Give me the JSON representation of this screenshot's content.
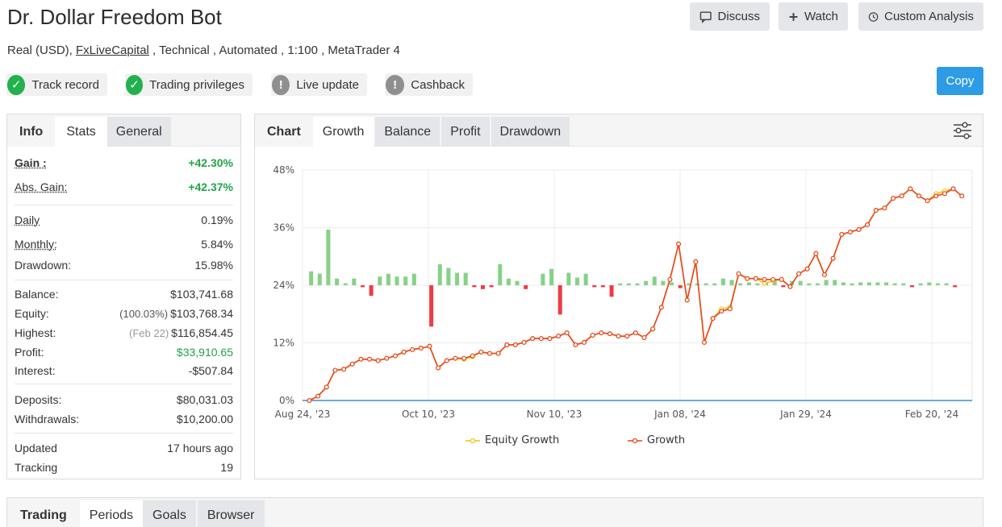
{
  "title": "Dr. Dollar Freedom Bot",
  "subtitle": {
    "part1": "Real (USD), ",
    "broker": "FxLiveCapital",
    "part2": " , Technical , Automated , 1:100 , MetaTrader 4"
  },
  "actions": {
    "discuss": "Discuss",
    "watch": "Watch",
    "custom_analysis": "Custom Analysis",
    "copy": "Copy"
  },
  "badges": [
    {
      "label": "Track record",
      "status": "ok"
    },
    {
      "label": "Trading privileges",
      "status": "ok"
    },
    {
      "label": "Live update",
      "status": "na"
    },
    {
      "label": "Cashback",
      "status": "na"
    }
  ],
  "stats_tabs": {
    "head": "Info",
    "tabs": [
      "Stats",
      "General"
    ]
  },
  "stats": {
    "gain": {
      "label": "Gain :",
      "value": "+42.30%"
    },
    "abs_gain": {
      "label": "Abs. Gain:",
      "value": "+42.37%"
    },
    "daily": {
      "label": "Daily",
      "value": "0.19%"
    },
    "monthly": {
      "label": "Monthly:",
      "value": "5.84%"
    },
    "drawdown": {
      "label": "Drawdown:",
      "value": "15.98%"
    },
    "balance": {
      "label": "Balance:",
      "value": "$103,741.68"
    },
    "equity": {
      "label": "Equity:",
      "note": "(100.03%)",
      "value": "$103,768.34"
    },
    "highest": {
      "label": "Highest:",
      "note": "(Feb 22)",
      "value": "$116,854.45"
    },
    "profit": {
      "label": "Profit:",
      "value": "$33,910.65"
    },
    "interest": {
      "label": "Interest:",
      "value": "-$507.84"
    },
    "deposits": {
      "label": "Deposits:",
      "value": "$80,031.03"
    },
    "withdrawals": {
      "label": "Withdrawals:",
      "value": "$10,200.00"
    },
    "updated": {
      "label": "Updated",
      "value": "17 hours ago"
    },
    "tracking": {
      "label": "Tracking",
      "value": "19"
    }
  },
  "chart_tabs": {
    "head": "Chart",
    "tabs": [
      "Growth",
      "Balance",
      "Profit",
      "Drawdown"
    ]
  },
  "bottom_tabs": {
    "head": "Trading",
    "tabs": [
      "Periods",
      "Goals",
      "Browser"
    ]
  },
  "colors": {
    "growth": "#e8431c",
    "equity": "#f4c20d",
    "bar_pos": "#86d186",
    "bar_neg": "#ef3b45",
    "accent": "#2e9be6"
  },
  "chart_data": {
    "type": "line",
    "x_tick_labels": [
      "Aug 24, '23",
      "Oct 10, '23",
      "Nov 10, '23",
      "Jan 08, '24",
      "Jan 29, '24",
      "Feb 20, '24"
    ],
    "y_tick_labels": [
      "0%",
      "12%",
      "24%",
      "36%",
      "48%"
    ],
    "ylim": [
      0,
      48
    ],
    "grid": true,
    "legend_position": "bottom",
    "series": [
      {
        "name": "Equity Growth",
        "points": [
          [
            0.8,
            0
          ],
          [
            1.8,
            0.9
          ],
          [
            2.8,
            2.8
          ],
          [
            3.8,
            6.3
          ],
          [
            4.8,
            6.5
          ],
          [
            5.8,
            7.6
          ],
          [
            6.8,
            8.6
          ],
          [
            7.8,
            8.6
          ],
          [
            8.8,
            8.3
          ],
          [
            9.8,
            8.8
          ],
          [
            10.8,
            9.3
          ],
          [
            11.8,
            10.1
          ],
          [
            12.8,
            10.6
          ],
          [
            13.8,
            10.9
          ],
          [
            14.8,
            11.3
          ],
          [
            15.8,
            6.8
          ],
          [
            16.8,
            8.3
          ],
          [
            17.8,
            8.8
          ],
          [
            18.8,
            8.6
          ],
          [
            19.8,
            9.1
          ],
          [
            20.8,
            10.1
          ],
          [
            21.8,
            9.8
          ],
          [
            22.8,
            9.8
          ],
          [
            23.8,
            11.6
          ],
          [
            24.8,
            11.6
          ],
          [
            25.8,
            12.1
          ],
          [
            26.8,
            12.9
          ],
          [
            27.8,
            12.9
          ],
          [
            28.8,
            12.9
          ],
          [
            29.8,
            13.4
          ],
          [
            30.8,
            14.1
          ],
          [
            31.8,
            11.6
          ],
          [
            32.8,
            12.1
          ],
          [
            33.8,
            13.6
          ],
          [
            34.8,
            14.1
          ],
          [
            35.8,
            13.9
          ],
          [
            36.8,
            13.4
          ],
          [
            37.8,
            13.4
          ],
          [
            38.8,
            14.1
          ],
          [
            39.8,
            13.1
          ],
          [
            40.8,
            14.9
          ],
          [
            41.8,
            19.4
          ],
          [
            42.8,
            25.2
          ],
          [
            43.8,
            32.6
          ],
          [
            44.8,
            20.9
          ],
          [
            45.8,
            28.9
          ],
          [
            46.8,
            12.1
          ],
          [
            47.8,
            17.1
          ],
          [
            48.8,
            19.1
          ],
          [
            49.8,
            19.4
          ],
          [
            50.8,
            26.4
          ],
          [
            51.8,
            25.4
          ],
          [
            52.8,
            25.4
          ],
          [
            53.8,
            24.4
          ],
          [
            54.8,
            24.9
          ],
          [
            55.8,
            25.2
          ],
          [
            56.8,
            23.7
          ],
          [
            57.8,
            26.4
          ],
          [
            58.8,
            27.4
          ],
          [
            59.8,
            30.6
          ],
          [
            60.8,
            26.2
          ],
          [
            61.8,
            29.6
          ],
          [
            62.8,
            34.6
          ],
          [
            63.8,
            35.1
          ],
          [
            64.8,
            35.6
          ],
          [
            65.8,
            36.6
          ],
          [
            66.8,
            39.6
          ],
          [
            67.8,
            40.1
          ],
          [
            68.8,
            42.1
          ],
          [
            69.8,
            42.6
          ],
          [
            70.8,
            44.1
          ],
          [
            71.8,
            42.6
          ],
          [
            72.8,
            41.6
          ],
          [
            73.8,
            43.1
          ],
          [
            74.8,
            43.6
          ],
          [
            75.8,
            44.1
          ],
          [
            76.8,
            42.6
          ]
        ]
      },
      {
        "name": "Growth",
        "points": [
          [
            0.8,
            0
          ],
          [
            1.8,
            0.9
          ],
          [
            2.8,
            2.8
          ],
          [
            3.8,
            6.3
          ],
          [
            4.8,
            6.5
          ],
          [
            5.8,
            7.6
          ],
          [
            6.8,
            8.6
          ],
          [
            7.8,
            8.6
          ],
          [
            8.8,
            8.3
          ],
          [
            9.8,
            8.8
          ],
          [
            10.8,
            9.3
          ],
          [
            11.8,
            10.1
          ],
          [
            12.8,
            10.6
          ],
          [
            13.8,
            10.9
          ],
          [
            14.8,
            11.3
          ],
          [
            15.8,
            6.8
          ],
          [
            16.8,
            8.3
          ],
          [
            17.8,
            8.8
          ],
          [
            18.8,
            8.8
          ],
          [
            19.8,
            9.3
          ],
          [
            20.8,
            10.1
          ],
          [
            21.8,
            9.8
          ],
          [
            22.8,
            9.8
          ],
          [
            23.8,
            11.6
          ],
          [
            24.8,
            11.6
          ],
          [
            25.8,
            12.1
          ],
          [
            26.8,
            12.9
          ],
          [
            27.8,
            12.9
          ],
          [
            28.8,
            12.9
          ],
          [
            29.8,
            13.4
          ],
          [
            30.8,
            14.1
          ],
          [
            31.8,
            11.6
          ],
          [
            32.8,
            12.1
          ],
          [
            33.8,
            13.6
          ],
          [
            34.8,
            14.1
          ],
          [
            35.8,
            13.9
          ],
          [
            36.8,
            13.4
          ],
          [
            37.8,
            13.4
          ],
          [
            38.8,
            14.1
          ],
          [
            39.8,
            13.1
          ],
          [
            40.8,
            14.9
          ],
          [
            41.8,
            19.4
          ],
          [
            42.8,
            25.2
          ],
          [
            43.8,
            32.6
          ],
          [
            44.8,
            20.9
          ],
          [
            45.8,
            28.9
          ],
          [
            46.8,
            12.1
          ],
          [
            47.8,
            17.1
          ],
          [
            48.8,
            18.6
          ],
          [
            49.8,
            19.1
          ],
          [
            50.8,
            26.4
          ],
          [
            51.8,
            25.4
          ],
          [
            52.8,
            25.4
          ],
          [
            53.8,
            25.2
          ],
          [
            54.8,
            25.2
          ],
          [
            55.8,
            25.2
          ],
          [
            56.8,
            23.7
          ],
          [
            57.8,
            26.4
          ],
          [
            58.8,
            27.4
          ],
          [
            59.8,
            30.6
          ],
          [
            60.8,
            26.2
          ],
          [
            61.8,
            29.6
          ],
          [
            62.8,
            34.6
          ],
          [
            63.8,
            35.1
          ],
          [
            64.8,
            35.6
          ],
          [
            65.8,
            36.6
          ],
          [
            66.8,
            39.6
          ],
          [
            67.8,
            40.1
          ],
          [
            68.8,
            42.1
          ],
          [
            69.8,
            42.6
          ],
          [
            70.8,
            44.1
          ],
          [
            71.8,
            42.6
          ],
          [
            72.8,
            41.6
          ],
          [
            73.8,
            42.6
          ],
          [
            74.8,
            43.1
          ],
          [
            75.8,
            44.1
          ],
          [
            76.8,
            42.6
          ]
        ]
      }
    ],
    "bars": [
      [
        1,
        2.9
      ],
      [
        2,
        2.4
      ],
      [
        3,
        11.6
      ],
      [
        4,
        1.4
      ],
      [
        5,
        0.4
      ],
      [
        6,
        1.4
      ],
      [
        7,
        -0.4
      ],
      [
        8,
        -2.2
      ],
      [
        9,
        1.8
      ],
      [
        10,
        2.4
      ],
      [
        11,
        1.8
      ],
      [
        12,
        1.8
      ],
      [
        13,
        2.4
      ],
      [
        15,
        -8.6
      ],
      [
        16,
        4.4
      ],
      [
        17,
        3.6
      ],
      [
        18,
        2.6
      ],
      [
        19,
        2.6
      ],
      [
        20,
        -0.4
      ],
      [
        21,
        -0.8
      ],
      [
        22,
        -0.4
      ],
      [
        23,
        4.4
      ],
      [
        24,
        1.4
      ],
      [
        25,
        0.9
      ],
      [
        26,
        -0.8
      ],
      [
        28,
        2.4
      ],
      [
        29,
        3.4
      ],
      [
        30,
        -6.1
      ],
      [
        31,
        2.6
      ],
      [
        32,
        1.6
      ],
      [
        33,
        2.4
      ],
      [
        34,
        -0.4
      ],
      [
        35,
        -0.4
      ],
      [
        36,
        -2.4
      ],
      [
        37,
        0.4
      ],
      [
        38,
        0.4
      ],
      [
        39,
        0.4
      ],
      [
        40,
        0.9
      ],
      [
        41,
        1.8
      ],
      [
        42,
        0.9
      ],
      [
        43,
        0.6
      ],
      [
        44,
        -0.6
      ],
      [
        45,
        0.4
      ],
      [
        46,
        0.4
      ],
      [
        47,
        0.4
      ],
      [
        48,
        0.4
      ],
      [
        49,
        1.4
      ],
      [
        50,
        1.1
      ],
      [
        51,
        0.4
      ],
      [
        52,
        0.6
      ],
      [
        53,
        0.4
      ],
      [
        54,
        0.6
      ],
      [
        55,
        0.9
      ],
      [
        56,
        -0.4
      ],
      [
        57,
        0.9
      ],
      [
        58,
        0.9
      ],
      [
        59,
        0.4
      ],
      [
        60,
        0.4
      ],
      [
        61,
        1.1
      ],
      [
        62,
        1.1
      ],
      [
        63,
        0.6
      ],
      [
        64,
        0.4
      ],
      [
        65,
        0.6
      ],
      [
        66,
        0.6
      ],
      [
        67,
        0.6
      ],
      [
        68,
        0.6
      ],
      [
        69,
        0.4
      ],
      [
        70,
        0.4
      ],
      [
        71,
        -0.4
      ],
      [
        72,
        0.4
      ],
      [
        73,
        0.6
      ],
      [
        74,
        0.4
      ],
      [
        75,
        0.4
      ],
      [
        76,
        -0.4
      ]
    ]
  }
}
